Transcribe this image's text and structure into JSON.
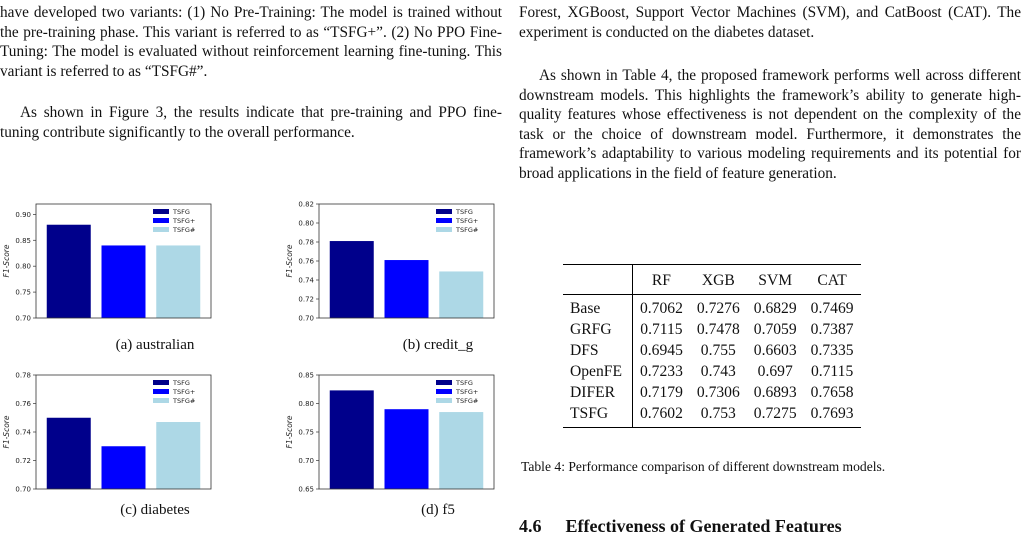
{
  "left_text": {
    "p1": "have developed two variants: (1) No Pre-Training: The model is trained without the pre-training phase. This variant is referred to as “TSFG+”. (2) No PPO Fine-Tuning: The model is evaluated without reinforcement learning fine-tuning. This variant is referred to as “TSFG#”.",
    "p2": "As shown in Figure 3, the results indicate that pre-training and PPO fine-tuning contribute significantly to the overall performance."
  },
  "colors": {
    "TSFG": "#00008b",
    "TSFG+": "#0000ff",
    "TSFG#": "#add8e6"
  },
  "chart_data": [
    {
      "type": "bar",
      "caption": "(a) australian",
      "ylabel": "F1-Score",
      "categories": [
        "TSFG",
        "TSFG+",
        "TSFG#"
      ],
      "values": [
        0.88,
        0.84,
        0.84
      ],
      "ylim": [
        0.7,
        0.92
      ],
      "yticks": [
        "0.70",
        "0.75",
        "0.80",
        "0.85",
        "0.90"
      ],
      "legend": [
        "TSFG",
        "TSFG+",
        "TSFG#"
      ],
      "legend_position": "top-right"
    },
    {
      "type": "bar",
      "caption": "(b) credit_g",
      "ylabel": "F1-Score",
      "categories": [
        "TSFG",
        "TSFG+",
        "TSFG#"
      ],
      "values": [
        0.781,
        0.761,
        0.749
      ],
      "ylim": [
        0.7,
        0.82
      ],
      "yticks": [
        "0.70",
        "0.72",
        "0.74",
        "0.76",
        "0.78",
        "0.80",
        "0.82"
      ],
      "legend": [
        "TSFG",
        "TSFG+",
        "TSFG#"
      ],
      "legend_position": "top-right"
    },
    {
      "type": "bar",
      "caption": "(c) diabetes",
      "ylabel": "F1-Score",
      "categories": [
        "TSFG",
        "TSFG+",
        "TSFG#"
      ],
      "values": [
        0.75,
        0.73,
        0.747
      ],
      "ylim": [
        0.7,
        0.78
      ],
      "yticks": [
        "0.70",
        "0.72",
        "0.74",
        "0.76",
        "0.78"
      ],
      "legend": [
        "TSFG",
        "TSFG+",
        "TSFG#"
      ],
      "legend_position": "top-right"
    },
    {
      "type": "bar",
      "caption": "(d) f5",
      "ylabel": "F1-Score",
      "categories": [
        "TSFG",
        "TSFG+",
        "TSFG#"
      ],
      "values": [
        0.823,
        0.79,
        0.785
      ],
      "ylim": [
        0.65,
        0.85
      ],
      "yticks": [
        "0.65",
        "0.70",
        "0.75",
        "0.80",
        "0.85"
      ],
      "legend": [
        "TSFG",
        "TSFG+",
        "TSFG#"
      ],
      "legend_position": "top-right"
    }
  ],
  "right_text": {
    "p1": "Forest, XGBoost, Support Vector Machines (SVM), and CatBoost (CAT). The experiment is conducted on the diabetes dataset.",
    "p2": "As shown in Table 4, the proposed framework performs well across different downstream models. This highlights the framework’s ability to generate high-quality features whose effectiveness is not dependent on the complexity of the task or the choice of downstream model. Furthermore, it demonstrates the framework’s adaptability to various modeling requirements and its potential for broad applications in the field of feature generation."
  },
  "table": {
    "columns": [
      "",
      "RF",
      "XGB",
      "SVM",
      "CAT"
    ],
    "rows": [
      [
        "Base",
        "0.7062",
        "0.7276",
        "0.6829",
        "0.7469"
      ],
      [
        "GRFG",
        "0.7115",
        "0.7478",
        "0.7059",
        "0.7387"
      ],
      [
        "DFS",
        "0.6945",
        "0.755",
        "0.6603",
        "0.7335"
      ],
      [
        "OpenFE",
        "0.7233",
        "0.743",
        "0.697",
        "0.7115"
      ],
      [
        "DIFER",
        "0.7179",
        "0.7306",
        "0.6893",
        "0.7658"
      ],
      [
        "TSFG",
        "0.7602",
        "0.753",
        "0.7275",
        "0.7693"
      ]
    ],
    "caption": "Table 4: Performance comparison of different downstream models."
  },
  "section": {
    "number": "4.6",
    "title": "Effectiveness of Generated Features"
  }
}
